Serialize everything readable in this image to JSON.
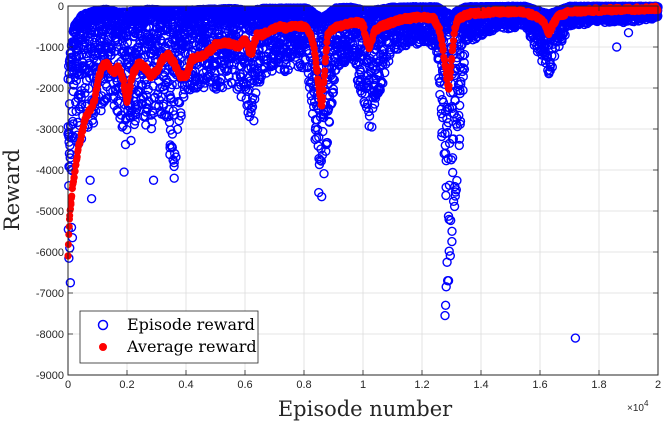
{
  "chart_data": {
    "type": "scatter",
    "title": "",
    "xlabel": "Episode number",
    "ylabel": "Reward",
    "x_multiplier_label": "×10",
    "x_multiplier_exponent": "4",
    "xlim": [
      0,
      20000
    ],
    "ylim": [
      -9000,
      0
    ],
    "x_ticks": [
      0,
      2000,
      4000,
      6000,
      8000,
      10000,
      12000,
      14000,
      16000,
      18000,
      20000
    ],
    "x_tick_labels": [
      "0",
      "0.2",
      "0.4",
      "0.6",
      "0.8",
      "1",
      "1.2",
      "1.4",
      "1.6",
      "1.8",
      "2"
    ],
    "y_ticks": [
      0,
      -1000,
      -2000,
      -3000,
      -4000,
      -5000,
      -6000,
      -7000,
      -8000,
      -9000
    ],
    "y_tick_labels": [
      "0",
      "-1000",
      "-2000",
      "-3000",
      "-4000",
      "-5000",
      "-6000",
      "-7000",
      "-8000",
      "-9000"
    ],
    "grid": true,
    "legend_position": "bottom-left",
    "legend": [
      "Episode reward",
      "Average reward"
    ],
    "series": [
      {
        "name": "Episode reward",
        "marker": "circle-open",
        "color": "#0000ff",
        "band": {
          "x": [
            0,
            200,
            500,
            1000,
            1300,
            1700,
            2000,
            2400,
            2800,
            3200,
            3600,
            4000,
            4800,
            5600,
            6200,
            6600,
            7400,
            8100,
            8600,
            9100,
            9600,
            10200,
            11000,
            12000,
            12500,
            12950,
            13500,
            14500,
            15500,
            16300,
            17000,
            18000,
            19000,
            20000
          ],
          "upper": [
            -1500,
            -500,
            -200,
            -100,
            -80,
            -150,
            -150,
            -100,
            -80,
            -100,
            -120,
            -100,
            -80,
            -60,
            -120,
            -60,
            -50,
            -50,
            -300,
            -40,
            -30,
            -120,
            -30,
            -20,
            -20,
            -200,
            -20,
            -15,
            -10,
            -200,
            -10,
            -10,
            -10,
            -10
          ],
          "lower": [
            -5600,
            -3600,
            -3200,
            -2800,
            -2300,
            -2800,
            -3700,
            -2500,
            -3500,
            -2700,
            -4200,
            -2200,
            -2100,
            -1900,
            -2800,
            -1700,
            -1600,
            -1500,
            -4700,
            -1500,
            -1300,
            -3000,
            -1100,
            -900,
            -1100,
            -6800,
            -900,
            -600,
            -500,
            -1700,
            -500,
            -400,
            -400,
            -300
          ]
        },
        "outliers": [
          {
            "x": 30,
            "y": -6150
          },
          {
            "x": 60,
            "y": -5900
          },
          {
            "x": 80,
            "y": -6750
          },
          {
            "x": 150,
            "y": -5650
          },
          {
            "x": 120,
            "y": -5400
          },
          {
            "x": 800,
            "y": -4700
          },
          {
            "x": 750,
            "y": -4250
          },
          {
            "x": 1900,
            "y": -4050
          },
          {
            "x": 2900,
            "y": -4250
          },
          {
            "x": 3600,
            "y": -4200
          },
          {
            "x": 6300,
            "y": -2800
          },
          {
            "x": 8500,
            "y": -4550
          },
          {
            "x": 8600,
            "y": -4650
          },
          {
            "x": 10300,
            "y": -2950
          },
          {
            "x": 12780,
            "y": -7550
          },
          {
            "x": 12800,
            "y": -7300
          },
          {
            "x": 12820,
            "y": -6850
          },
          {
            "x": 12870,
            "y": -6700
          },
          {
            "x": 12900,
            "y": -6700
          },
          {
            "x": 12850,
            "y": -6250
          },
          {
            "x": 16300,
            "y": -1650
          },
          {
            "x": 17200,
            "y": -8100
          },
          {
            "x": 18600,
            "y": -1000
          },
          {
            "x": 19000,
            "y": -650
          }
        ]
      },
      {
        "name": "Average reward",
        "marker": "star-filled",
        "color": "#ff0000",
        "x": [
          0,
          50,
          100,
          150,
          200,
          300,
          400,
          500,
          600,
          700,
          800,
          900,
          1000,
          1100,
          1200,
          1300,
          1400,
          1500,
          1600,
          1700,
          1800,
          1900,
          2000,
          2100,
          2200,
          2400,
          2600,
          2800,
          3000,
          3200,
          3400,
          3600,
          3800,
          4000,
          4200,
          4400,
          4600,
          4800,
          5000,
          5200,
          5400,
          5600,
          5800,
          6000,
          6200,
          6400,
          6600,
          6800,
          7000,
          7200,
          7400,
          7600,
          7800,
          8000,
          8200,
          8300,
          8400,
          8500,
          8600,
          8700,
          8800,
          9000,
          9200,
          9400,
          9600,
          9800,
          10000,
          10100,
          10200,
          10300,
          10400,
          10600,
          10800,
          11000,
          11200,
          11400,
          11600,
          11800,
          12000,
          12200,
          12400,
          12600,
          12700,
          12800,
          12900,
          13000,
          13100,
          13200,
          13400,
          13600,
          13800,
          14000,
          14500,
          15000,
          15500,
          16000,
          16200,
          16300,
          16400,
          16600,
          17000,
          17500,
          18000,
          18500,
          19000,
          19500,
          20000
        ],
        "y": [
          -6100,
          -5200,
          -4800,
          -4450,
          -4200,
          -3700,
          -3300,
          -3000,
          -2700,
          -2600,
          -2500,
          -2300,
          -1900,
          -1600,
          -1450,
          -1400,
          -1450,
          -1600,
          -1600,
          -1500,
          -1650,
          -1900,
          -2300,
          -2000,
          -1650,
          -1400,
          -1500,
          -1700,
          -1600,
          -1300,
          -1200,
          -1400,
          -1700,
          -1700,
          -1300,
          -1250,
          -1200,
          -1100,
          -950,
          -900,
          -900,
          -950,
          -1000,
          -800,
          -1200,
          -700,
          -700,
          -600,
          -550,
          -500,
          -550,
          -500,
          -500,
          -500,
          -650,
          -900,
          -1300,
          -2000,
          -2500,
          -1600,
          -700,
          -550,
          -500,
          -450,
          -420,
          -400,
          -450,
          -800,
          -1000,
          -800,
          -600,
          -500,
          -450,
          -400,
          -350,
          -300,
          -300,
          -280,
          -280,
          -280,
          -300,
          -600,
          -1000,
          -1500,
          -2100,
          -1300,
          -600,
          -350,
          -250,
          -200,
          -180,
          -170,
          -150,
          -140,
          -150,
          -300,
          -500,
          -700,
          -500,
          -250,
          -150,
          -120,
          -100,
          -90,
          -80,
          -70,
          -60
        ]
      }
    ]
  }
}
